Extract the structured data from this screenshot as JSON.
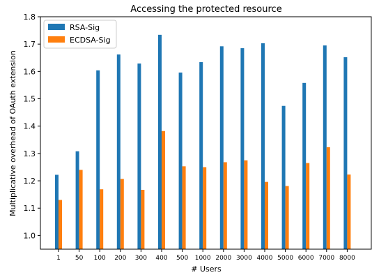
{
  "chart_data": {
    "type": "bar",
    "title": "Accessing the protected resource",
    "xlabel": "# Users",
    "ylabel": "Multiplicative overhead of OAuth extension",
    "categories": [
      "1",
      "50",
      "100",
      "200",
      "300",
      "400",
      "500",
      "1000",
      "2000",
      "3000",
      "4000",
      "5000",
      "6000",
      "7000",
      "8000"
    ],
    "ylim": [
      0.95,
      1.8
    ],
    "yticks": [
      "1.0",
      "1.1",
      "1.2",
      "1.3",
      "1.4",
      "1.5",
      "1.6",
      "1.7",
      "1.8"
    ],
    "legend_position": "top-left",
    "series": [
      {
        "name": "RSA-Sig",
        "color": "#1f77b4",
        "values": [
          1.222,
          1.308,
          1.604,
          1.662,
          1.629,
          1.734,
          1.596,
          1.634,
          1.692,
          1.685,
          1.703,
          1.474,
          1.558,
          1.695,
          1.652
        ]
      },
      {
        "name": "ECDSA-Sig",
        "color": "#ff7f0e",
        "values": [
          1.13,
          1.24,
          1.169,
          1.207,
          1.167,
          1.382,
          1.253,
          1.25,
          1.268,
          1.275,
          1.196,
          1.181,
          1.265,
          1.323,
          1.223
        ]
      }
    ]
  }
}
